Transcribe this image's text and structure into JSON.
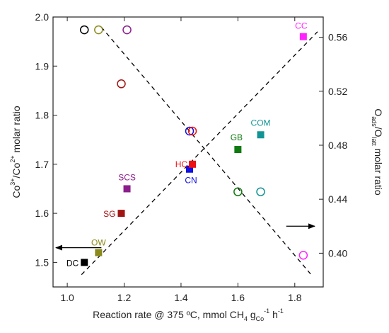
{
  "chart_data": {
    "type": "scatter",
    "x_axis": {
      "label_parts": [
        "Reaction rate @ 375 ºC, mmol CH",
        "4",
        " g",
        "Co",
        "-1",
        " h",
        "-1"
      ],
      "range": [
        0.95,
        1.9
      ],
      "ticks": [
        1.0,
        1.2,
        1.4,
        1.6,
        1.8
      ],
      "tick_labels": [
        "1.0",
        "1.2",
        "1.4",
        "1.6",
        "1.8"
      ]
    },
    "y_left": {
      "label_parts": [
        "Co",
        "3+",
        "/Co",
        "2+",
        " molar ratio"
      ],
      "range": [
        1.45,
        2.0
      ],
      "ticks": [
        1.5,
        1.6,
        1.7,
        1.8,
        1.9,
        2.0
      ],
      "tick_labels": [
        "1.5",
        "1.6",
        "1.7",
        "1.8",
        "1.9",
        "2.0"
      ]
    },
    "y_right": {
      "label_parts": [
        "O",
        "ads",
        "/O",
        "latt",
        " molar ratio"
      ],
      "range": [
        0.375,
        0.575
      ],
      "ticks": [
        0.4,
        0.44,
        0.48,
        0.52,
        0.56
      ],
      "tick_labels": [
        "0.40",
        "0.44",
        "0.48",
        "0.52",
        "0.56"
      ]
    },
    "series": [
      {
        "axis": "left",
        "marker": "square",
        "points": [
          {
            "label": "DC",
            "x": 1.06,
            "y": 1.5,
            "color": "#000000"
          },
          {
            "label": "OW",
            "x": 1.11,
            "y": 1.52,
            "color": "#8b8b1c"
          },
          {
            "label": "SG",
            "x": 1.19,
            "y": 1.6,
            "color": "#a01414"
          },
          {
            "label": "SCS",
            "x": 1.21,
            "y": 1.65,
            "color": "#8b1e8b"
          },
          {
            "label": "CN",
            "x": 1.43,
            "y": 1.69,
            "color": "#1010e0"
          },
          {
            "label": "HC",
            "x": 1.44,
            "y": 1.7,
            "color": "#ee1111"
          },
          {
            "label": "GB",
            "x": 1.6,
            "y": 1.73,
            "color": "#0f7a0f"
          },
          {
            "label": "COM",
            "x": 1.68,
            "y": 1.76,
            "color": "#139494"
          },
          {
            "label": "CC",
            "x": 1.83,
            "y": 1.96,
            "color": "#ff22ff"
          }
        ]
      },
      {
        "axis": "right",
        "marker": "circle",
        "points": [
          {
            "x": 1.06,
            "y": 0.5655,
            "color": "#000000"
          },
          {
            "x": 1.11,
            "y": 0.5655,
            "color": "#8b8b1c"
          },
          {
            "x": 1.19,
            "y": 0.5255,
            "color": "#a01414"
          },
          {
            "x": 1.21,
            "y": 0.5655,
            "color": "#8b1e8b"
          },
          {
            "x": 1.43,
            "y": 0.4905,
            "color": "#1010e0"
          },
          {
            "x": 1.44,
            "y": 0.4905,
            "color": "#ee1111"
          },
          {
            "x": 1.6,
            "y": 0.4455,
            "color": "#0f7a0f"
          },
          {
            "x": 1.68,
            "y": 0.4455,
            "color": "#139494"
          },
          {
            "x": 1.83,
            "y": 0.3985,
            "color": "#ff22ff"
          }
        ]
      }
    ],
    "trend_lines": [
      {
        "axis": "left",
        "from": [
          1.05,
          1.475
        ],
        "to": [
          1.88,
          1.97
        ]
      },
      {
        "axis": "right",
        "from": [
          1.12,
          0.5675
        ],
        "to": [
          1.86,
          0.3835
        ]
      }
    ],
    "arrows": [
      {
        "axis": "left",
        "direction": "left",
        "from_x": 1.12,
        "to_x": 0.96,
        "y": 1.53
      },
      {
        "axis": "right",
        "direction": "right",
        "from_x": 1.77,
        "to_x": 1.87,
        "y": 0.42
      }
    ],
    "grid": false,
    "legend": "none"
  }
}
